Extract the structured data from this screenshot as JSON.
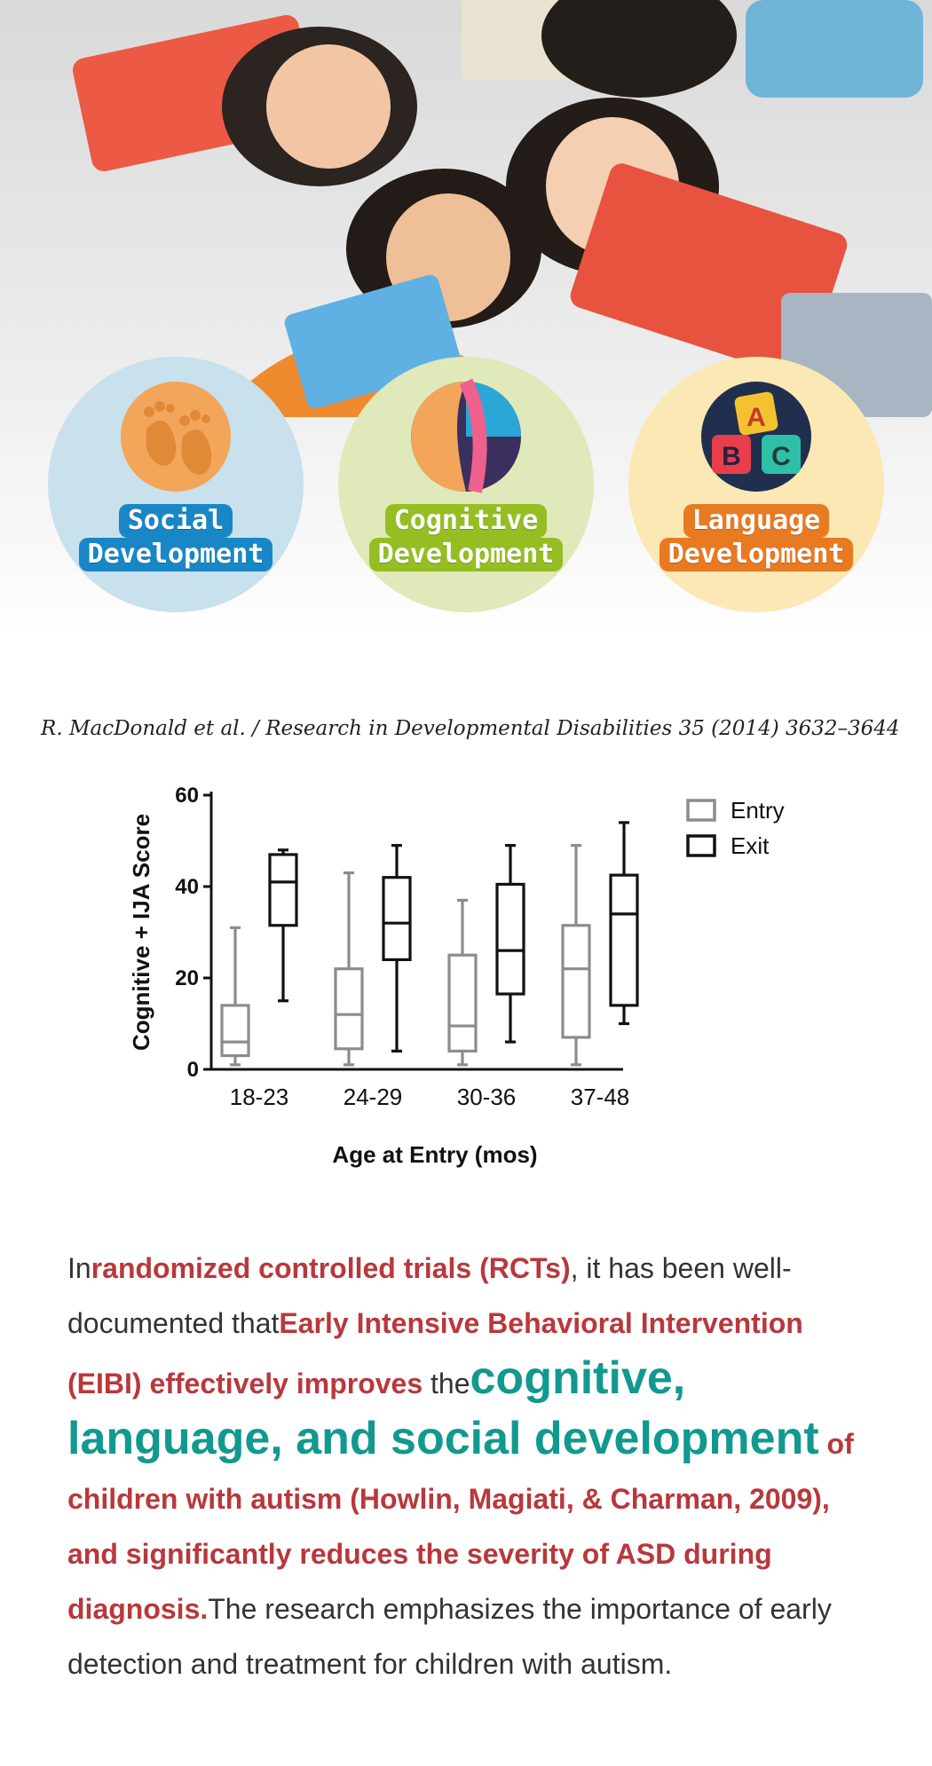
{
  "hero": {
    "circles": [
      {
        "line1": "Social",
        "line2": "Development",
        "icon": "footprints-icon",
        "bg": "#c9e0ed",
        "label_bg": "#1987c6"
      },
      {
        "line1": "Cognitive",
        "line2": "Development",
        "icon": "ball-icon",
        "bg": "#dfe9b9",
        "label_bg": "#95be23"
      },
      {
        "line1": "Language",
        "line2": "Development",
        "icon": "abc-blocks-icon",
        "bg": "#fbe8b4",
        "label_bg": "#e87a22"
      }
    ],
    "abc": [
      "A",
      "B",
      "C"
    ]
  },
  "citation": "R. MacDonald et al. / Research in Developmental Disabilities 35 (2014) 3632–3644",
  "chart_data": {
    "type": "boxplot",
    "ylabel": "Cognitive + IJA Score",
    "xlabel": "Age at Entry (mos)",
    "ylim": [
      0,
      60
    ],
    "yticks": [
      0,
      20,
      40,
      60
    ],
    "categories": [
      "18-23",
      "24-29",
      "30-36",
      "37-48"
    ],
    "legend_position": "top-right",
    "series": [
      {
        "name": "Entry",
        "color": "#8c8c8c",
        "boxes": [
          {
            "min": 1,
            "q1": 3,
            "median": 6,
            "q3": 14,
            "max": 31
          },
          {
            "min": 1,
            "q1": 4.5,
            "median": 12,
            "q3": 22,
            "max": 43
          },
          {
            "min": 1,
            "q1": 4,
            "median": 9.5,
            "q3": 25,
            "max": 37
          },
          {
            "min": 1,
            "q1": 7,
            "median": 22,
            "q3": 31.5,
            "max": 49
          }
        ]
      },
      {
        "name": "Exit",
        "color": "#111111",
        "boxes": [
          {
            "min": 15,
            "q1": 31.5,
            "median": 41,
            "q3": 47,
            "max": 48
          },
          {
            "min": 4,
            "q1": 24,
            "median": 32,
            "q3": 42,
            "max": 49
          },
          {
            "min": 6,
            "q1": 16.5,
            "median": 26,
            "q3": 40.5,
            "max": 49
          },
          {
            "min": 10,
            "q1": 14,
            "median": 34,
            "q3": 42.5,
            "max": 54
          }
        ]
      }
    ]
  },
  "paragraph": {
    "p1": "In",
    "h1": "randomized controlled trials (RCTs)",
    "p2": ", it has been well-documented that",
    "h2": "Early Intensive Behavioral Intervention (EIBI) effectively improves",
    "p3": " the",
    "h3": "cognitive, language, and social development",
    "h4": " of children with autism (Howlin, Magiati, & Charman, 2009), and significantly reduces the severity of ASD during diagnosis.",
    "p4": "The research emphasizes the importance of early detection and treatment for children with autism."
  }
}
